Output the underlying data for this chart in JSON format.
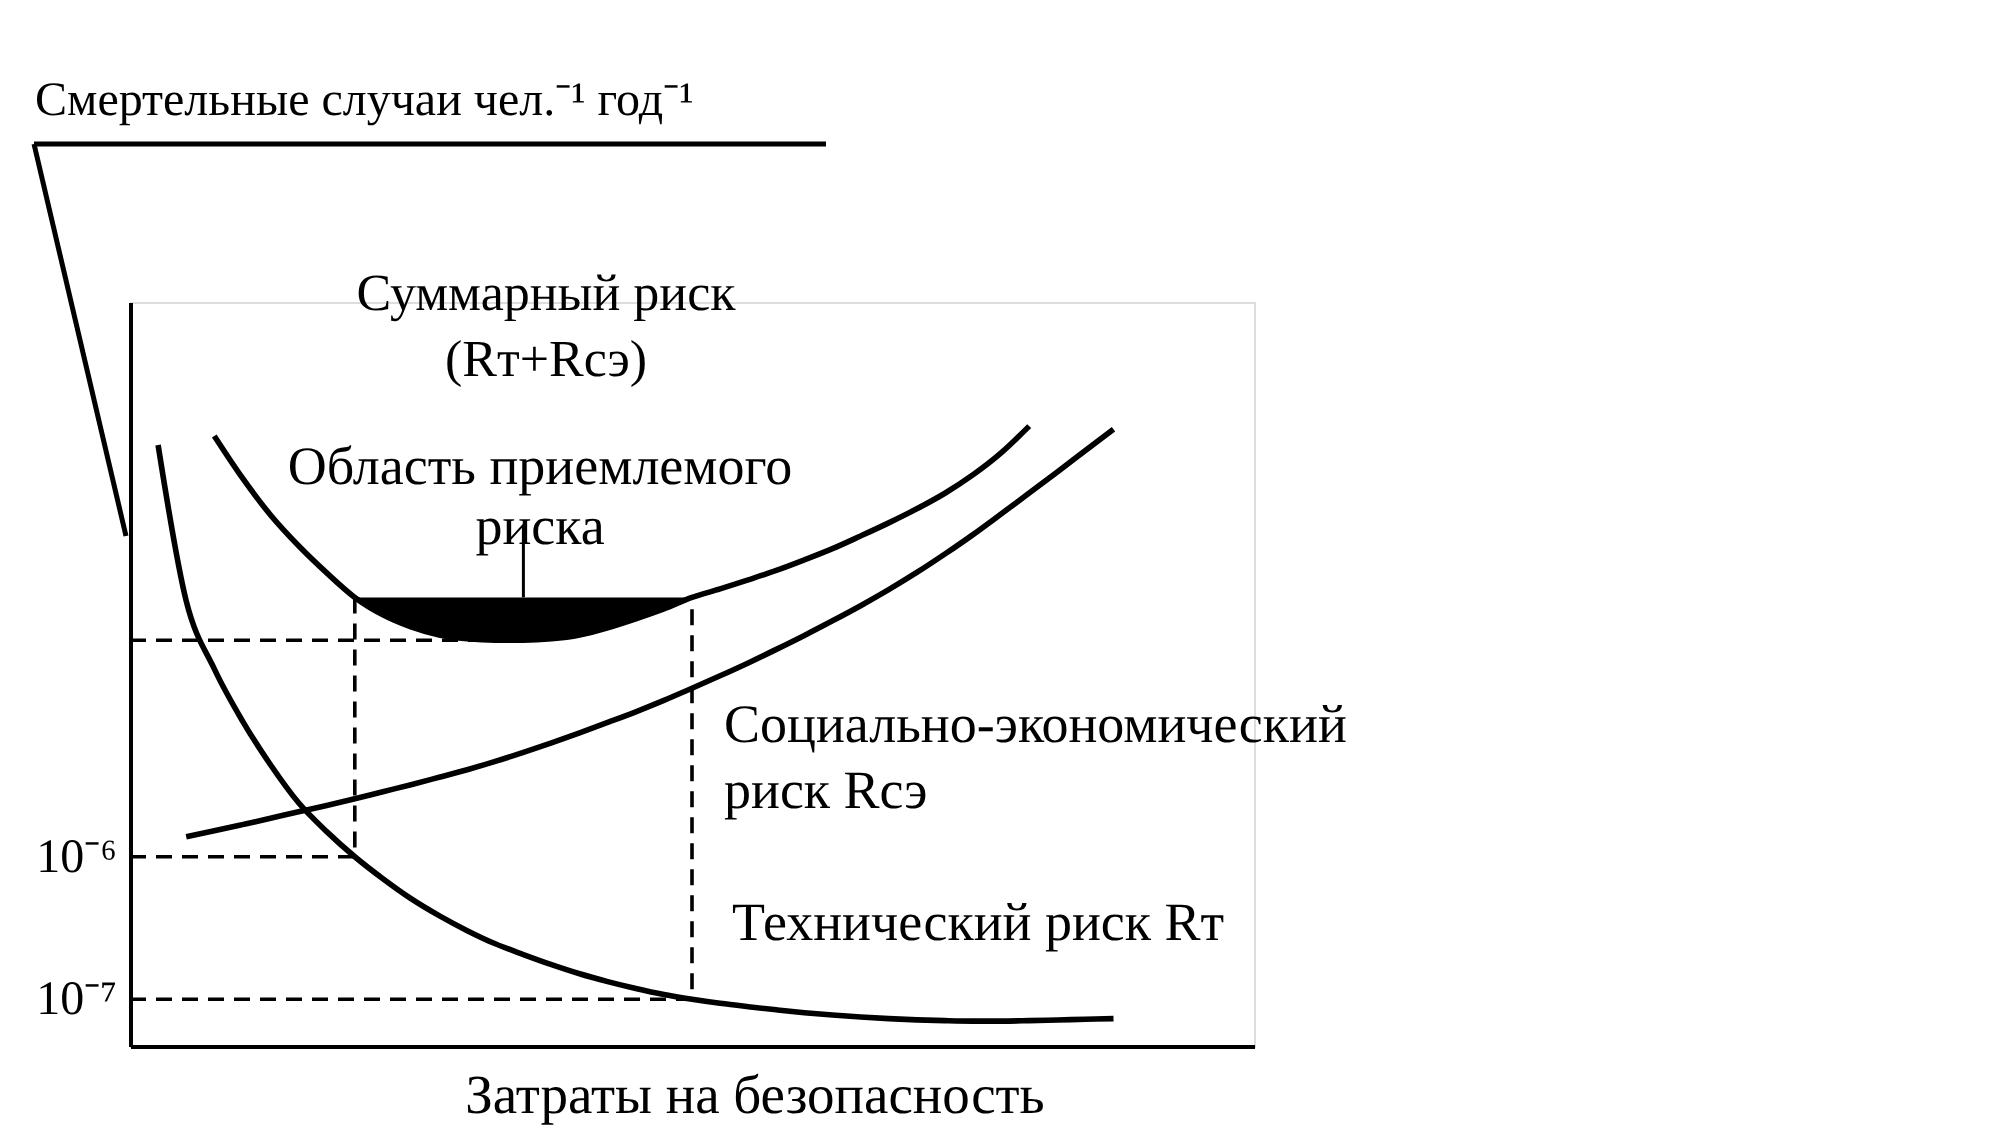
{
  "chart_data": {
    "type": "line",
    "ylabel": "Смертельные случаи чел.⁻¹ год⁻¹",
    "xlabel": "Затраты на безопасность",
    "categories": [
      null,
      null,
      null,
      null,
      null,
      null,
      null,
      null,
      null,
      null,
      null,
      null,
      null,
      null,
      null,
      null,
      null,
      null,
      null,
      null,
      null,
      null,
      null,
      null,
      null,
      null,
      null,
      null,
      null,
      null,
      null,
      null,
      null,
      null,
      null,
      null,
      null,
      null,
      null,
      null,
      null
    ],
    "log": "y",
    "ylim": [
      4.7e-08,
      0.0078
    ],
    "yticks": [
      {
        "value": 1e-07,
        "label": "10⁻⁷"
      },
      {
        "value": 1e-06,
        "label": "10⁻⁶"
      }
    ],
    "tick_labels": "y",
    "grid": false,
    "legend": false,
    "series": [
      {
        "name": "Суммарный риск\n(Rт+Rсэ)",
        "color": "#000000",
        "values": [
          null,
          null,
          null,
          0.000896,
          0.000455,
          0.00025,
          0.000152,
          9.81e-05,
          6.6e-05,
          4.98e-05,
          4.1e-05,
          3.6e-05,
          3.38e-05,
          3.3e-05,
          3.3e-05,
          3.38e-05,
          3.6e-05,
          4.04e-05,
          4.67e-05,
          5.48e-05,
          6.6e-05,
          7.57e-05,
          8.76e-05,
          0.000102,
          0.000121,
          0.000145,
          0.000178,
          0.00022,
          0.000276,
          0.000355,
          0.000478,
          0.000681,
          0.00105,
          null,
          null,
          null,
          null,
          null,
          null,
          null,
          null
        ],
        "lower": [
          null,
          null,
          null,
          null,
          null,
          null,
          null,
          null,
          6.6e-05,
          4.98e-05,
          4.1e-05,
          3.6e-05,
          3.38e-05,
          3.3e-05,
          3.3e-05,
          3.38e-05,
          3.6e-05,
          4.04e-05,
          4.67e-05,
          5.48e-05,
          6.6e-05,
          null,
          null,
          null,
          null,
          null,
          null,
          null,
          null,
          null,
          null,
          null,
          null,
          null,
          null,
          null,
          null,
          null,
          null,
          null,
          null
        ],
        "upper": [
          null,
          null,
          null,
          null,
          null,
          null,
          null,
          null,
          6.6e-05,
          6.6e-05,
          6.6e-05,
          6.6e-05,
          6.6e-05,
          6.6e-05,
          6.6e-05,
          6.6e-05,
          6.6e-05,
          6.6e-05,
          6.6e-05,
          6.6e-05,
          6.6e-05,
          null,
          null,
          null,
          null,
          null,
          null,
          null,
          null,
          null,
          null,
          null,
          null,
          null,
          null,
          null,
          null,
          null,
          null,
          null,
          null
        ]
      },
      {
        "name": "Социально-экономический\nриск Rсэ",
        "color": "#000000",
        "values": [
          null,
          null,
          1.38e-06,
          1.52e-06,
          1.68e-06,
          1.86e-06,
          2.07e-06,
          2.29e-06,
          2.55e-06,
          2.86e-06,
          3.2e-06,
          3.61e-06,
          4.08e-06,
          4.67e-06,
          5.4e-06,
          6.3e-06,
          7.41e-06,
          8.76e-06,
          1.04e-05,
          1.25e-05,
          1.52e-05,
          1.86e-05,
          2.29e-05,
          2.85e-05,
          3.57e-05,
          4.52e-05,
          5.77e-05,
          7.48e-05,
          9.87e-05,
          0.000133,
          0.000182,
          0.000254,
          0.000356,
          0.000501,
          0.000708,
          0.001,
          null,
          null,
          null,
          null,
          null
        ]
      },
      {
        "name": "Технический риск Rт",
        "color": "#000000",
        "values": [
          null,
          0.000774,
          6.24e-05,
          2.08e-05,
          8.99e-06,
          4.42e-06,
          2.39e-06,
          1.5e-06,
          1e-06,
          7.01e-07,
          5.08e-07,
          3.86e-07,
          3.03e-07,
          2.45e-07,
          2.06e-07,
          1.75e-07,
          1.51e-07,
          1.33e-07,
          1.19e-07,
          1.08e-07,
          1e-07,
          9.37e-08,
          8.87e-08,
          8.43e-08,
          8.05e-08,
          7.75e-08,
          7.5e-08,
          7.31e-08,
          7.17e-08,
          7.08e-08,
          7.03e-08,
          7.03e-08,
          7.08e-08,
          7.15e-08,
          7.24e-08,
          7.31e-08,
          null,
          null,
          null,
          null,
          null
        ]
      },
      {
        "type": "line",
        "color": "#000000",
        "line_style": "dashed",
        "values": [
          3.3e-05,
          3.3e-05,
          3.3e-05,
          3.3e-05,
          3.3e-05,
          3.3e-05,
          3.3e-05,
          3.3e-05,
          3.3e-05,
          3.3e-05,
          3.3e-05,
          3.3e-05,
          3.3e-05,
          3.3e-05,
          null,
          null,
          null,
          null,
          null,
          null,
          null,
          null,
          null,
          null,
          null,
          null,
          null,
          null,
          null,
          null,
          null,
          null,
          null,
          null,
          null,
          null,
          null,
          null,
          null,
          null,
          null
        ]
      },
      {
        "type": "step",
        "color": "#000000",
        "line_style": "dashed",
        "values": [
          1e-06,
          1e-06,
          1e-06,
          1e-06,
          1e-06,
          1e-06,
          1e-06,
          1e-06,
          6.6e-05,
          null,
          null,
          null,
          null,
          null,
          null,
          null,
          null,
          null,
          null,
          null,
          null,
          null,
          null,
          null,
          null,
          null,
          null,
          null,
          null,
          null,
          null,
          null,
          null,
          null,
          null,
          null,
          null,
          null,
          null,
          null,
          null
        ]
      },
      {
        "type": "step",
        "color": "#000000",
        "line_style": "dashed",
        "values": [
          1e-07,
          1e-07,
          1e-07,
          1e-07,
          1e-07,
          1e-07,
          1e-07,
          1e-07,
          1e-07,
          1e-07,
          1e-07,
          1e-07,
          1e-07,
          1e-07,
          1e-07,
          1e-07,
          1e-07,
          1e-07,
          1e-07,
          1e-07,
          6.6e-05,
          null,
          null,
          null,
          null,
          null,
          null,
          null,
          null,
          null,
          null,
          null,
          null,
          null,
          null,
          null,
          null,
          null,
          null,
          null,
          null
        ]
      }
    ],
    "annotations": [
      "Область приемлемого\nриска"
    ]
  }
}
